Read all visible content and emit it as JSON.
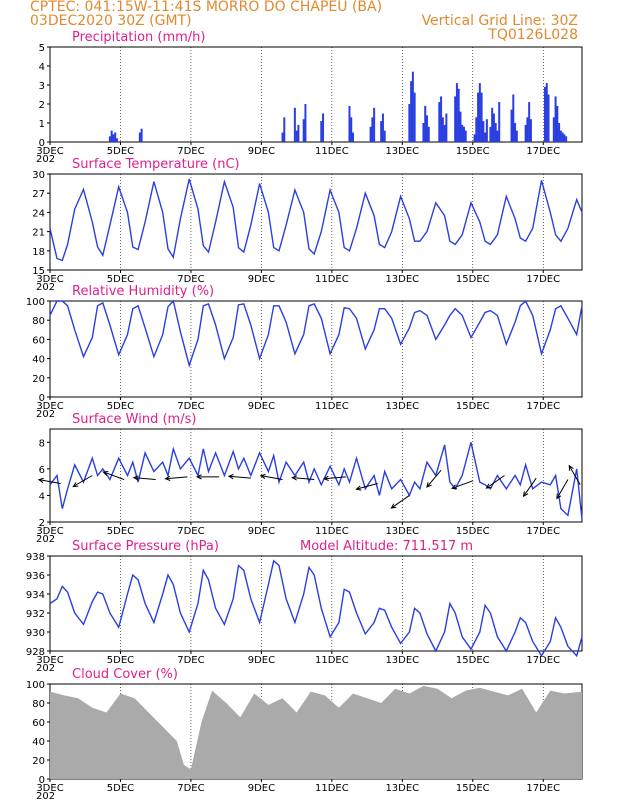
{
  "header": {
    "line1_left": "CPTEC:   041:15W-11:41S   MORRO DO CHAPEU (BA)",
    "line2_left": "03DEC2020 30Z (GMT)",
    "line2_right": "Vertical Grid Line: 30Z",
    "line3_right": "TQ0126L028"
  },
  "colors": {
    "header": "#e08a30",
    "title": "#e0208a",
    "line": "#2a3fe0",
    "cloud": "#aaaaaa",
    "arrow": "#000000"
  },
  "x_axis": {
    "labels": [
      "3DEC",
      "5DEC",
      "7DEC",
      "9DEC",
      "11DEC",
      "13DEC",
      "15DEC",
      "17DEC"
    ],
    "label_days": [
      0,
      2,
      4,
      6,
      8,
      10,
      12,
      14
    ],
    "year_fragment": "202",
    "range_days": [
      0,
      15.1
    ]
  },
  "chart_data": [
    {
      "type": "bar",
      "title": "Precipitation (mm/h)",
      "ylim": [
        0,
        5
      ],
      "yticks": [
        "0",
        "1",
        "2",
        "3",
        "4",
        "5"
      ],
      "series": [
        {
          "values_x_days": [
            1.7,
            1.75,
            1.8,
            1.85,
            1.9,
            2.55,
            2.6,
            6.6,
            6.65,
            6.95,
            7.0,
            7.05,
            7.2,
            7.25,
            7.7,
            7.75,
            8.5,
            8.55,
            8.6,
            9.1,
            9.15,
            9.2,
            9.4,
            9.45,
            9.5,
            10.2,
            10.25,
            10.3,
            10.35,
            10.6,
            10.65,
            10.7,
            10.75,
            11.05,
            11.1,
            11.15,
            11.2,
            11.25,
            11.5,
            11.55,
            11.6,
            11.65,
            11.7,
            11.75,
            11.8,
            12.05,
            12.1,
            12.15,
            12.2,
            12.25,
            12.3,
            12.35,
            12.4,
            12.5,
            12.55,
            12.6,
            12.65,
            12.7,
            12.75,
            13.1,
            13.15,
            13.2,
            13.25,
            13.5,
            13.55,
            13.6,
            13.65,
            14.05,
            14.1,
            14.15,
            14.3,
            14.35,
            14.4,
            14.45,
            14.5,
            14.55,
            14.6,
            14.65
          ],
          "values_mm": [
            0.3,
            0.6,
            0.4,
            0.5,
            0.2,
            0.5,
            0.7,
            0.5,
            1.3,
            1.8,
            0.6,
            0.9,
            1.2,
            2.0,
            1.1,
            1.5,
            1.9,
            1.3,
            0.5,
            0.8,
            1.3,
            1.8,
            1.1,
            1.5,
            0.6,
            2.0,
            3.2,
            3.7,
            2.6,
            1.0,
            1.9,
            1.4,
            0.8,
            2.1,
            2.4,
            1.3,
            0.9,
            1.5,
            2.4,
            3.1,
            2.8,
            1.6,
            0.9,
            0.8,
            0.6,
            0.4,
            1.3,
            2.6,
            3.1,
            2.6,
            1.1,
            0.5,
            1.2,
            0.8,
            1.8,
            1.5,
            1.0,
            0.6,
            2.1,
            1.7,
            2.5,
            1.0,
            0.6,
            0.9,
            1.3,
            2.1,
            1.2,
            2.9,
            3.1,
            2.5,
            1.3,
            2.4,
            1.9,
            1.0,
            0.6,
            0.5,
            0.4,
            0.3
          ]
        }
      ]
    },
    {
      "type": "line",
      "title": "Surface Temperature (nC)",
      "ylim": [
        15,
        30
      ],
      "yticks": [
        "15",
        "18",
        "21",
        "24",
        "27",
        "30"
      ],
      "series": [
        {
          "name": "",
          "x_days": [
            0.0,
            0.2,
            0.35,
            0.5,
            0.7,
            0.95,
            1.2,
            1.35,
            1.5,
            1.7,
            1.95,
            2.2,
            2.35,
            2.5,
            2.7,
            2.95,
            3.2,
            3.35,
            3.5,
            3.7,
            3.95,
            4.2,
            4.35,
            4.5,
            4.7,
            4.95,
            5.2,
            5.35,
            5.5,
            5.7,
            5.95,
            6.2,
            6.35,
            6.5,
            6.7,
            6.95,
            7.2,
            7.35,
            7.5,
            7.7,
            7.95,
            8.2,
            8.35,
            8.5,
            8.7,
            8.95,
            9.2,
            9.35,
            9.5,
            9.7,
            9.95,
            10.2,
            10.35,
            10.5,
            10.7,
            10.95,
            11.2,
            11.35,
            11.5,
            11.7,
            11.95,
            12.2,
            12.35,
            12.5,
            12.7,
            12.95,
            13.2,
            13.35,
            13.5,
            13.7,
            13.95,
            14.2,
            14.35,
            14.5,
            14.7,
            14.95,
            15.1
          ],
          "values": [
            21.5,
            16.8,
            16.5,
            19.0,
            24.5,
            27.6,
            22.5,
            18.6,
            17.3,
            22.0,
            28.0,
            24.0,
            18.6,
            18.2,
            22.5,
            28.8,
            24.0,
            18.3,
            17.0,
            23.0,
            29.2,
            24.5,
            18.8,
            17.8,
            22.5,
            28.8,
            24.8,
            18.5,
            17.8,
            22.0,
            28.5,
            24.0,
            18.5,
            18.0,
            22.0,
            27.5,
            24.0,
            18.3,
            17.5,
            21.0,
            27.5,
            24.0,
            18.5,
            18.0,
            21.5,
            27.0,
            23.5,
            19.0,
            18.5,
            21.0,
            26.5,
            23.0,
            19.5,
            19.5,
            21.0,
            25.5,
            23.5,
            19.5,
            19.0,
            20.5,
            25.5,
            22.5,
            19.5,
            19.0,
            20.5,
            26.5,
            23.0,
            20.0,
            19.5,
            21.5,
            29.0,
            24.0,
            20.5,
            19.5,
            21.5,
            26.0,
            24.0
          ]
        }
      ]
    },
    {
      "type": "line",
      "title": "Relative Humidity (%)",
      "ylim": [
        0,
        100
      ],
      "yticks": [
        "0",
        "20",
        "40",
        "60",
        "80",
        "100"
      ],
      "series": [
        {
          "name": "",
          "x_days": [
            0.0,
            0.2,
            0.35,
            0.5,
            0.7,
            0.95,
            1.2,
            1.35,
            1.5,
            1.7,
            1.95,
            2.2,
            2.35,
            2.5,
            2.7,
            2.95,
            3.2,
            3.35,
            3.5,
            3.7,
            3.95,
            4.2,
            4.35,
            4.5,
            4.7,
            4.95,
            5.2,
            5.35,
            5.5,
            5.7,
            5.95,
            6.2,
            6.35,
            6.5,
            6.7,
            6.95,
            7.2,
            7.35,
            7.5,
            7.7,
            7.95,
            8.2,
            8.35,
            8.5,
            8.7,
            8.95,
            9.2,
            9.35,
            9.5,
            9.7,
            9.95,
            10.2,
            10.35,
            10.5,
            10.7,
            10.95,
            11.2,
            11.35,
            11.5,
            11.7,
            11.95,
            12.2,
            12.35,
            12.5,
            12.7,
            12.95,
            13.2,
            13.35,
            13.5,
            13.7,
            13.95,
            14.2,
            14.35,
            14.5,
            14.7,
            14.95,
            15.1
          ],
          "values": [
            85,
            100,
            100,
            95,
            70,
            42,
            62,
            95,
            98,
            75,
            44,
            65,
            92,
            95,
            72,
            42,
            65,
            94,
            100,
            68,
            33,
            60,
            95,
            97,
            75,
            40,
            62,
            96,
            97,
            75,
            40,
            65,
            95,
            95,
            78,
            45,
            65,
            95,
            97,
            82,
            45,
            65,
            93,
            92,
            82,
            50,
            70,
            92,
            92,
            82,
            55,
            72,
            88,
            90,
            85,
            60,
            75,
            85,
            92,
            85,
            62,
            78,
            88,
            90,
            85,
            55,
            78,
            95,
            100,
            85,
            45,
            70,
            92,
            95,
            82,
            65,
            95
          ]
        }
      ]
    },
    {
      "type": "line",
      "title": "Surface Wind (m/s)",
      "ylim": [
        2,
        9
      ],
      "yticks": [
        "2",
        "4",
        "6",
        "8"
      ],
      "series": [
        {
          "name": "",
          "x_days": [
            0.0,
            0.2,
            0.35,
            0.5,
            0.7,
            0.95,
            1.2,
            1.35,
            1.5,
            1.7,
            1.95,
            2.2,
            2.35,
            2.5,
            2.7,
            2.95,
            3.2,
            3.35,
            3.5,
            3.7,
            3.95,
            4.2,
            4.35,
            4.5,
            4.7,
            4.95,
            5.2,
            5.35,
            5.5,
            5.7,
            5.95,
            6.2,
            6.35,
            6.5,
            6.7,
            6.95,
            7.2,
            7.35,
            7.5,
            7.7,
            7.95,
            8.2,
            8.35,
            8.5,
            8.7,
            8.95,
            9.2,
            9.35,
            9.5,
            9.7,
            9.95,
            10.2,
            10.35,
            10.5,
            10.7,
            10.95,
            11.2,
            11.35,
            11.5,
            11.7,
            11.95,
            12.2,
            12.35,
            12.5,
            12.7,
            12.95,
            13.2,
            13.35,
            13.5,
            13.7,
            13.95,
            14.2,
            14.35,
            14.5,
            14.7,
            14.95,
            15.1
          ],
          "values": [
            4.8,
            5.5,
            3.0,
            4.5,
            6.3,
            5.0,
            6.8,
            5.5,
            6.0,
            5.2,
            6.8,
            5.5,
            6.5,
            5.0,
            7.2,
            5.8,
            6.5,
            5.5,
            7.5,
            6.0,
            6.8,
            5.5,
            7.5,
            5.8,
            7.2,
            5.5,
            7.3,
            6.0,
            6.8,
            5.5,
            7.2,
            5.8,
            7.0,
            5.0,
            6.5,
            5.5,
            6.5,
            5.0,
            6.0,
            4.8,
            6.2,
            4.8,
            6.0,
            5.0,
            6.8,
            4.5,
            5.5,
            4.0,
            5.8,
            4.5,
            5.2,
            4.0,
            5.0,
            4.5,
            6.5,
            5.5,
            7.8,
            5.0,
            4.5,
            5.5,
            8.0,
            5.0,
            4.8,
            4.5,
            5.5,
            4.5,
            5.5,
            4.8,
            6.3,
            4.5,
            5.0,
            4.8,
            5.5,
            3.0,
            2.5,
            6.0,
            2.2
          ]
        }
      ],
      "vectors_x_days": [
        0.3,
        1.2,
        2.1,
        3.0,
        3.9,
        4.8,
        5.7,
        6.6,
        7.5,
        8.4,
        9.3,
        10.2,
        11.1,
        12.0,
        12.9,
        13.8,
        14.7,
        15.05
      ],
      "vectors_speed": [
        4.9,
        5.5,
        5.2,
        5.2,
        5.4,
        5.4,
        5.3,
        5.2,
        5.2,
        5.4,
        4.9,
        4.0,
        5.9,
        5.1,
        5.5,
        5.3,
        5.2,
        4.8
      ],
      "vectors_direction_deg": [
        170,
        210,
        160,
        175,
        185,
        180,
        175,
        170,
        175,
        185,
        195,
        215,
        230,
        200,
        215,
        235,
        240,
        120
      ]
    },
    {
      "type": "line",
      "title": "Surface Pressure (hPa)",
      "annotation": "Model Altitude: 711.517 m",
      "ylim": [
        928,
        938
      ],
      "yticks": [
        "928",
        "930",
        "932",
        "934",
        "936",
        "938"
      ],
      "series": [
        {
          "name": "",
          "x_days": [
            0.0,
            0.2,
            0.35,
            0.5,
            0.7,
            0.95,
            1.2,
            1.35,
            1.5,
            1.7,
            1.95,
            2.2,
            2.35,
            2.5,
            2.7,
            2.95,
            3.2,
            3.35,
            3.5,
            3.7,
            3.95,
            4.2,
            4.35,
            4.5,
            4.7,
            4.95,
            5.2,
            5.35,
            5.5,
            5.7,
            5.95,
            6.2,
            6.35,
            6.5,
            6.7,
            6.95,
            7.2,
            7.35,
            7.5,
            7.7,
            7.95,
            8.2,
            8.35,
            8.5,
            8.7,
            8.95,
            9.2,
            9.35,
            9.5,
            9.7,
            9.95,
            10.2,
            10.35,
            10.5,
            10.7,
            10.95,
            11.2,
            11.35,
            11.5,
            11.7,
            11.95,
            12.2,
            12.35,
            12.5,
            12.7,
            12.95,
            13.2,
            13.35,
            13.5,
            13.7,
            13.95,
            14.2,
            14.35,
            14.5,
            14.7,
            14.95,
            15.1
          ],
          "values": [
            933.0,
            933.5,
            934.8,
            934.2,
            932.0,
            930.8,
            933.2,
            934.2,
            934.0,
            932.0,
            930.5,
            934.0,
            936.0,
            935.5,
            933.0,
            931.0,
            934.0,
            936.0,
            935.0,
            932.0,
            930.0,
            933.0,
            936.5,
            935.5,
            932.5,
            930.8,
            933.5,
            937.0,
            936.5,
            933.5,
            931.0,
            935.0,
            937.5,
            937.0,
            933.5,
            931.0,
            934.0,
            936.8,
            936.0,
            932.5,
            929.5,
            931.0,
            934.5,
            934.2,
            932.0,
            929.8,
            931.0,
            932.5,
            932.3,
            930.5,
            928.8,
            930.0,
            932.5,
            932.0,
            929.8,
            928.0,
            930.0,
            933.0,
            932.0,
            929.5,
            928.2,
            930.0,
            932.8,
            932.0,
            929.5,
            928.0,
            930.0,
            931.5,
            931.0,
            929.0,
            927.5,
            929.0,
            931.5,
            930.5,
            928.5,
            927.5,
            929.5
          ]
        }
      ]
    },
    {
      "type": "area",
      "title": "Cloud Cover (%)",
      "ylim": [
        0,
        100
      ],
      "yticks": [
        "0",
        "20",
        "40",
        "60",
        "80",
        "100"
      ],
      "series": [
        {
          "name": "",
          "x_days": [
            0.0,
            0.4,
            0.8,
            1.2,
            1.6,
            2.0,
            2.4,
            2.8,
            3.2,
            3.6,
            3.8,
            4.0,
            4.3,
            4.6,
            5.0,
            5.4,
            5.8,
            6.2,
            6.6,
            7.0,
            7.4,
            7.8,
            8.2,
            8.6,
            9.0,
            9.4,
            9.8,
            10.2,
            10.6,
            11.0,
            11.4,
            11.8,
            12.2,
            12.6,
            13.0,
            13.4,
            13.8,
            14.2,
            14.6,
            15.1
          ],
          "values": [
            92,
            88,
            85,
            75,
            70,
            90,
            85,
            70,
            55,
            40,
            15,
            10,
            60,
            93,
            80,
            65,
            90,
            78,
            85,
            70,
            92,
            88,
            75,
            90,
            85,
            80,
            95,
            90,
            98,
            95,
            85,
            93,
            96,
            92,
            88,
            95,
            70,
            93,
            90,
            92
          ]
        }
      ]
    }
  ]
}
